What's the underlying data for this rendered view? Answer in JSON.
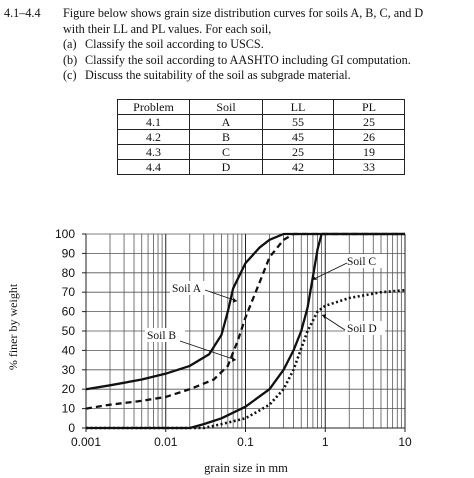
{
  "problem": {
    "number": "4.1–4.4",
    "intro_line1": "Figure below shows grain size distribution curves for soils A, B, C, and D",
    "intro_line2": "with their LL and PL values. For each soil,",
    "items": [
      {
        "label": "(a)",
        "text": "Classify the soil according to USCS."
      },
      {
        "label": "(b)",
        "text": "Classify the soil according to AASHTO including GI computation."
      },
      {
        "label": "(c)",
        "text": "Discuss the suitability of the soil as subgrade material."
      }
    ]
  },
  "table": {
    "headers": [
      "Problem",
      "Soil",
      "LL",
      "PL"
    ],
    "rows": [
      [
        "4.1",
        "A",
        "55",
        "25"
      ],
      [
        "4.2",
        "B",
        "45",
        "26"
      ],
      [
        "4.3",
        "C",
        "25",
        "19"
      ],
      [
        "4.4",
        "D",
        "42",
        "33"
      ]
    ]
  },
  "chart_data": {
    "type": "line",
    "title": "",
    "xlabel": "grain size in mm",
    "ylabel": "% finer by weight",
    "x_scale": "log",
    "xlim": [
      0.001,
      10
    ],
    "ylim": [
      0,
      100
    ],
    "x_ticks": [
      "0.001",
      "0.01",
      "0.1",
      "1",
      "10"
    ],
    "y_ticks": [
      "0",
      "10",
      "20",
      "30",
      "40",
      "50",
      "60",
      "70",
      "80",
      "90",
      "100"
    ],
    "grid": true,
    "legend": "none (curves labelled directly)",
    "series": [
      {
        "name": "Soil A",
        "style": "solid",
        "points": [
          [
            0.001,
            20
          ],
          [
            0.002,
            22
          ],
          [
            0.005,
            25
          ],
          [
            0.01,
            28
          ],
          [
            0.02,
            32
          ],
          [
            0.035,
            38
          ],
          [
            0.05,
            48
          ],
          [
            0.06,
            60
          ],
          [
            0.07,
            72
          ],
          [
            0.1,
            85
          ],
          [
            0.15,
            93
          ],
          [
            0.2,
            97
          ],
          [
            0.3,
            100
          ],
          [
            10,
            100
          ]
        ]
      },
      {
        "name": "Soil B",
        "style": "dashed",
        "points": [
          [
            0.001,
            10
          ],
          [
            0.002,
            12
          ],
          [
            0.005,
            14
          ],
          [
            0.01,
            16
          ],
          [
            0.02,
            20
          ],
          [
            0.04,
            25
          ],
          [
            0.06,
            32
          ],
          [
            0.08,
            45
          ],
          [
            0.1,
            57
          ],
          [
            0.15,
            75
          ],
          [
            0.2,
            88
          ],
          [
            0.3,
            97
          ],
          [
            0.4,
            100
          ],
          [
            10,
            100
          ]
        ]
      },
      {
        "name": "Soil C",
        "style": "solid",
        "points": [
          [
            0.001,
            0
          ],
          [
            0.02,
            0
          ],
          [
            0.03,
            2
          ],
          [
            0.05,
            5
          ],
          [
            0.1,
            11
          ],
          [
            0.2,
            20
          ],
          [
            0.3,
            30
          ],
          [
            0.4,
            40
          ],
          [
            0.5,
            50
          ],
          [
            0.6,
            62
          ],
          [
            0.7,
            78
          ],
          [
            0.8,
            92
          ],
          [
            0.9,
            100
          ],
          [
            10,
            100
          ]
        ]
      },
      {
        "name": "Soil D",
        "style": "dotted",
        "points": [
          [
            0.001,
            0
          ],
          [
            0.03,
            0
          ],
          [
            0.05,
            2
          ],
          [
            0.1,
            5
          ],
          [
            0.2,
            12
          ],
          [
            0.3,
            20
          ],
          [
            0.4,
            30
          ],
          [
            0.6,
            50
          ],
          [
            0.8,
            60
          ],
          [
            1,
            63
          ],
          [
            2,
            67
          ],
          [
            5,
            70
          ],
          [
            10,
            71
          ]
        ]
      }
    ],
    "annotations": [
      {
        "text": "Soil A",
        "target": "Soil A"
      },
      {
        "text": "Soil B",
        "target": "Soil B"
      },
      {
        "text": "Soil C",
        "target": "Soil C"
      },
      {
        "text": "Soil D",
        "target": "Soil D"
      }
    ]
  }
}
